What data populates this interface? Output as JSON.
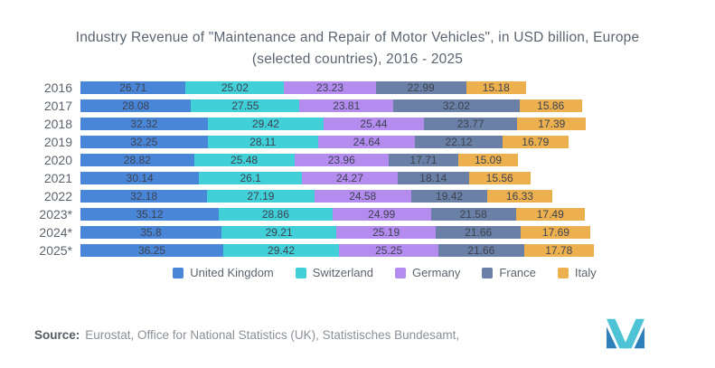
{
  "title": {
    "line1": "Industry Revenue of \"Maintenance and Repair of Motor Vehicles\", in USD billion, Europe",
    "line2": "(selected countries), 2016 - 2025"
  },
  "chart_data": {
    "type": "bar",
    "orientation": "horizontal",
    "stacked": true,
    "unit": "USD billion",
    "value_labels": "inside",
    "legend_position": "bottom",
    "categories": [
      "2016",
      "2017",
      "2018",
      "2019",
      "2020",
      "2021",
      "2022",
      "2023*",
      "2024*",
      "2025*"
    ],
    "series": [
      {
        "name": "United Kingdom",
        "color": "#4a86d8",
        "values": [
          26.71,
          28.08,
          32.32,
          32.25,
          28.82,
          30.14,
          32.18,
          35.12,
          35.8,
          36.25
        ]
      },
      {
        "name": "Switzerland",
        "color": "#41cfd8",
        "values": [
          25.02,
          27.55,
          29.42,
          28.11,
          25.48,
          26.1,
          27.19,
          28.86,
          29.21,
          29.42
        ]
      },
      {
        "name": "Germany",
        "color": "#b48cf0",
        "values": [
          23.23,
          23.81,
          25.44,
          24.64,
          23.96,
          24.27,
          24.58,
          24.99,
          25.19,
          25.25
        ]
      },
      {
        "name": "France",
        "color": "#6b80a6",
        "values": [
          22.99,
          32.02,
          23.77,
          22.12,
          17.71,
          18.14,
          19.42,
          21.58,
          21.66,
          21.66
        ]
      },
      {
        "name": "Italy",
        "color": "#ecb04f",
        "values": [
          15.18,
          15.86,
          17.39,
          16.79,
          15.09,
          15.56,
          16.33,
          17.49,
          17.69,
          17.78
        ]
      }
    ]
  },
  "footer": {
    "source_label": "Source:",
    "source_text": "Eurostat, Office for National Statistics (UK), Statistisches Bundesamt,"
  },
  "logo": {
    "name": "mordor-intelligence-logo",
    "teal": "#4ec3d5",
    "blue": "#2c7fb8"
  }
}
